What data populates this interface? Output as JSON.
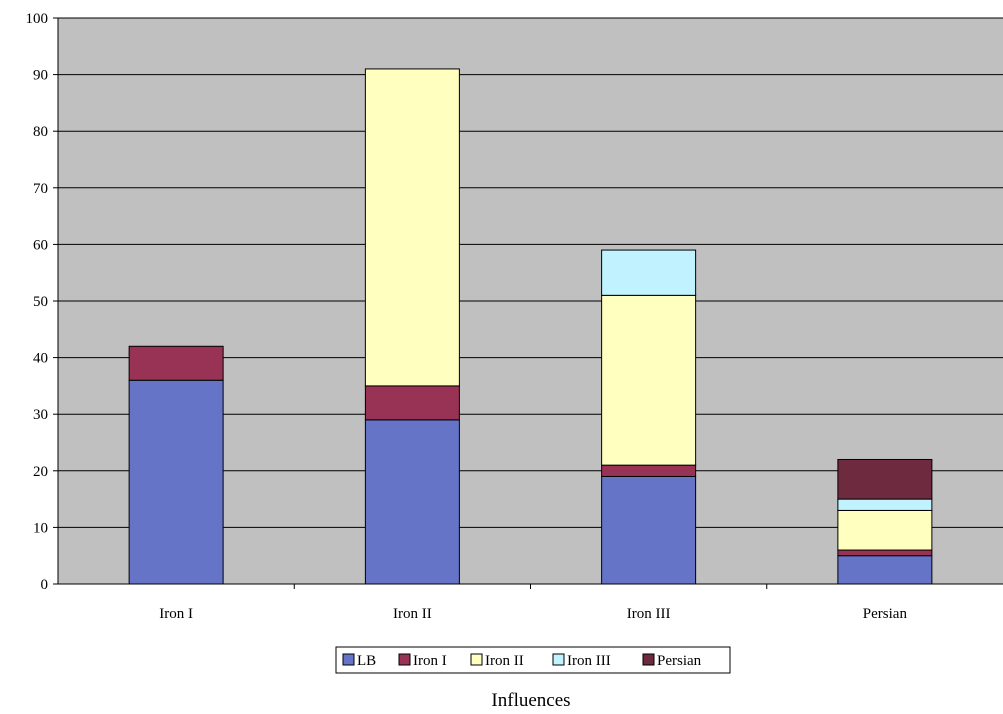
{
  "chart_data": {
    "type": "bar",
    "stacked": true,
    "title": "",
    "xlabel": "Influences",
    "ylabel": "",
    "ylim": [
      0,
      100
    ],
    "yticks": [
      0,
      10,
      20,
      30,
      40,
      50,
      60,
      70,
      80,
      90,
      100
    ],
    "categories": [
      "Iron I",
      "Iron II",
      "Iron III",
      "Persian"
    ],
    "series": [
      {
        "name": "LB",
        "color": "#6674C8",
        "values": [
          36,
          29,
          19,
          5
        ]
      },
      {
        "name": "Iron I",
        "color": "#993355",
        "values": [
          6,
          6,
          2,
          1
        ]
      },
      {
        "name": "Iron II",
        "color": "#FFFFC0",
        "values": [
          0,
          56,
          30,
          7
        ]
      },
      {
        "name": "Iron III",
        "color": "#C0F2FF",
        "values": [
          0,
          0,
          8,
          2
        ]
      },
      {
        "name": "Persian",
        "color": "#6E2A3E",
        "values": [
          0,
          0,
          0,
          7
        ]
      }
    ],
    "grid": true,
    "plot_background": "#C0C0C0",
    "legend_position": "bottom"
  }
}
